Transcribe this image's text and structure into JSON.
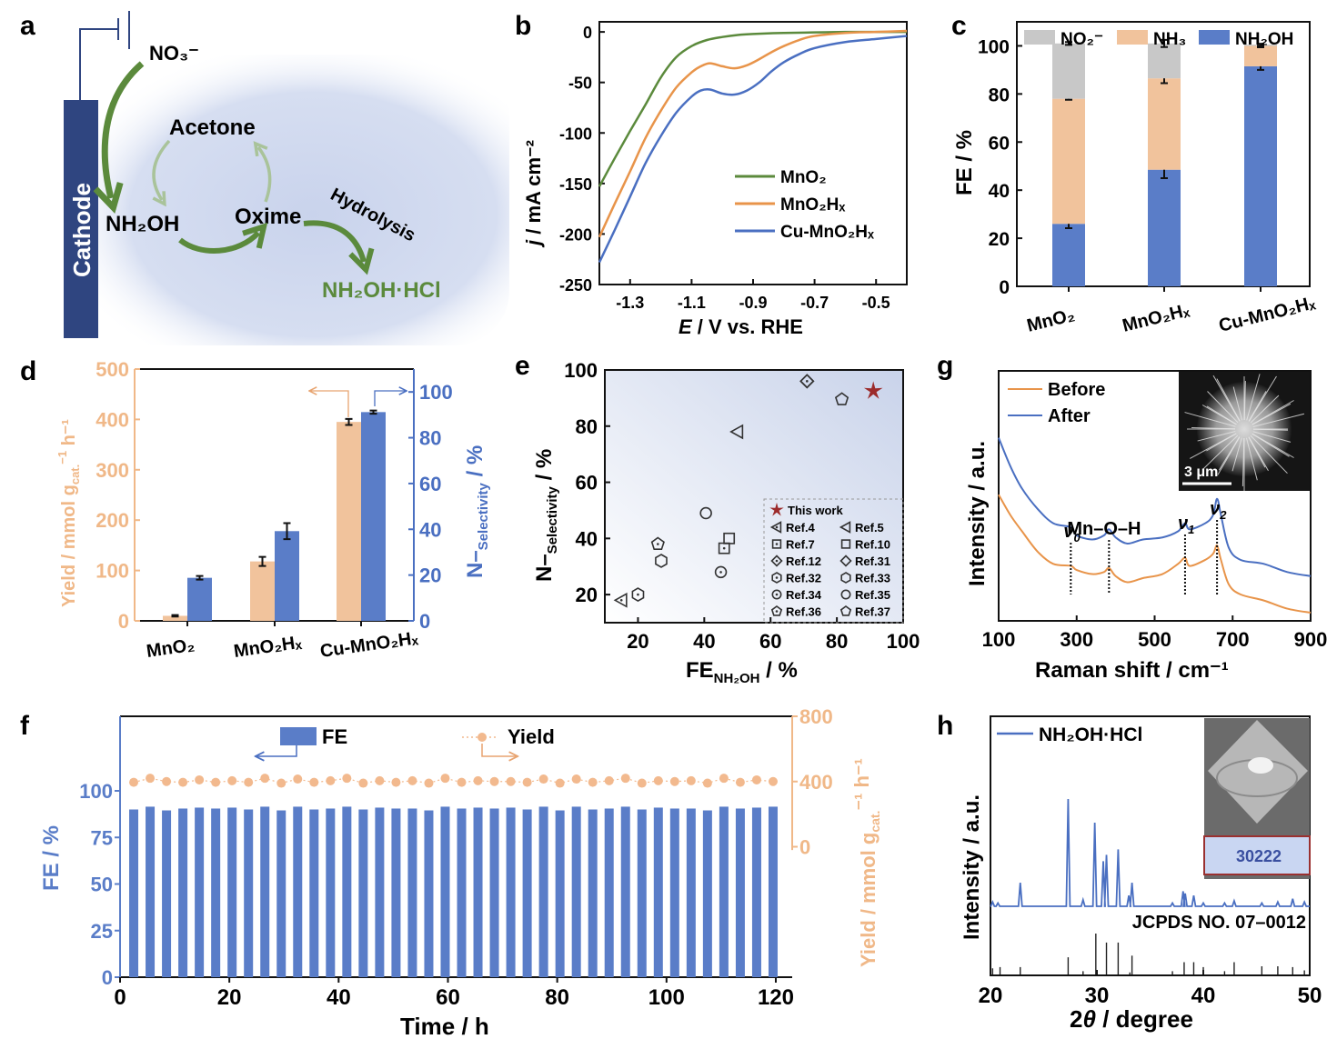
{
  "colors": {
    "green": "#5b8a3c",
    "orange": "#e8944a",
    "blue": "#4a6fc1",
    "bar_blue": "#5a7dc8",
    "bar_peach": "#f1c39c",
    "bar_grey": "#c8c8c8",
    "peach_axis": "#f0b888",
    "star": "#9c2b2b",
    "cathode": "#2f4580"
  },
  "panel_a": {
    "label": "a",
    "nodes": {
      "no3": "NO₃⁻",
      "acetone": "Acetone",
      "nh2oh": "NH₂OH",
      "oxime": "Oxime",
      "hydrolysis": "Hydrolysis",
      "product": "NH₂OH·HCl",
      "cathode": "Cathode"
    }
  },
  "chart_data": [
    {
      "panel": "b",
      "type": "line",
      "xlabel": "E / V vs. RHE",
      "ylabel": "j / mA cm⁻²",
      "xlim": [
        -1.4,
        -0.4
      ],
      "ylim": [
        -250,
        10
      ],
      "xticks": [
        -1.3,
        -1.1,
        -0.9,
        -0.7,
        -0.5
      ],
      "yticks": [
        0,
        -50,
        -100,
        -150,
        -200,
        -250
      ],
      "legend_position": "center-right",
      "series": [
        {
          "name": "MnO₂",
          "color": "#5b8a3c",
          "x": [
            -1.4,
            -1.35,
            -1.3,
            -1.25,
            -1.2,
            -1.15,
            -1.1,
            -1.05,
            -1.0,
            -0.95,
            -0.9,
            -0.8,
            -0.7,
            -0.6,
            -0.5,
            -0.4
          ],
          "y": [
            -153,
            -125,
            -98,
            -72,
            -45,
            -25,
            -14,
            -8,
            -5,
            -3,
            -2,
            -1,
            -0.5,
            0,
            0,
            0
          ]
        },
        {
          "name": "MnO₂Hₓ",
          "color": "#e8944a",
          "x": [
            -1.4,
            -1.35,
            -1.3,
            -1.25,
            -1.2,
            -1.15,
            -1.1,
            -1.07,
            -1.04,
            -1.0,
            -0.96,
            -0.92,
            -0.88,
            -0.84,
            -0.8,
            -0.75,
            -0.7,
            -0.6,
            -0.5,
            -0.4
          ],
          "y": [
            -203,
            -170,
            -138,
            -105,
            -78,
            -55,
            -40,
            -34,
            -31,
            -34,
            -36,
            -33,
            -27,
            -20,
            -14,
            -8,
            -4,
            -1,
            0,
            1
          ]
        },
        {
          "name": "Cu-MnO₂Hₓ",
          "color": "#4a6fc1",
          "x": [
            -1.4,
            -1.35,
            -1.3,
            -1.25,
            -1.2,
            -1.15,
            -1.1,
            -1.07,
            -1.04,
            -1.0,
            -0.96,
            -0.92,
            -0.88,
            -0.84,
            -0.8,
            -0.75,
            -0.7,
            -0.6,
            -0.5,
            -0.4
          ],
          "y": [
            -228,
            -196,
            -163,
            -130,
            -103,
            -80,
            -64,
            -58,
            -57,
            -61,
            -62,
            -58,
            -50,
            -39,
            -30,
            -22,
            -16,
            -10,
            -7,
            -4
          ]
        }
      ]
    },
    {
      "panel": "c",
      "type": "bar",
      "stacked": true,
      "ylabel": "FE / %",
      "ylim": [
        0,
        110
      ],
      "yticks": [
        0,
        20,
        40,
        60,
        80,
        100
      ],
      "categories": [
        "MnO₂",
        "MnO₂Hₓ",
        "Cu-MnO₂Hₓ"
      ],
      "legend_position": "top",
      "series": [
        {
          "name": "NH₂OH",
          "color": "#5a7dc8",
          "values": [
            26,
            48.5,
            91.5
          ],
          "errors": [
            1.8,
            3.5,
            1.5
          ]
        },
        {
          "name": "NH₃",
          "color": "#f1c39c",
          "values": [
            52,
            38,
            8.5
          ],
          "errors": [
            0.4,
            2,
            0.6
          ]
        },
        {
          "name": "NO₂⁻",
          "color": "#c8c8c8",
          "values": [
            23,
            14.5,
            0.5
          ],
          "errors": [
            0.6,
            1.5,
            0.4
          ]
        }
      ]
    },
    {
      "panel": "d",
      "type": "bar",
      "categories": [
        "MnO₂",
        "MnO₂Hₓ",
        "Cu-MnO₂Hₓ"
      ],
      "ylabel_left": "Yield / mmol g_cat.⁻¹ h⁻¹",
      "ylabel_right": "N–Selectivity / %",
      "ylim_left": [
        0,
        500
      ],
      "ylim_right": [
        0,
        110
      ],
      "yticks_left": [
        0,
        100,
        200,
        300,
        400,
        500
      ],
      "yticks_right": [
        0,
        20,
        40,
        60,
        80,
        100
      ],
      "series": [
        {
          "name": "Yield",
          "axis": "left",
          "color": "#f1c39c",
          "values": [
            10,
            118,
            395
          ],
          "errors": [
            1.5,
            9,
            6
          ]
        },
        {
          "name": "N-Selectivity",
          "axis": "right",
          "color": "#5a7dc8",
          "values": [
            18.8,
            39.2,
            91.2
          ],
          "errors": [
            0.8,
            3.5,
            0.7
          ]
        }
      ]
    },
    {
      "panel": "e",
      "type": "scatter",
      "xlabel": "FE_NH₂OH / %",
      "ylabel": "N–Selectivity / %",
      "xlim": [
        10,
        100
      ],
      "ylim": [
        10,
        100
      ],
      "xticks": [
        20,
        40,
        60,
        80,
        100
      ],
      "yticks": [
        20,
        40,
        60,
        80,
        100
      ],
      "legend_position": "bottom-right",
      "points": [
        {
          "label": "This work",
          "marker": "star",
          "x": 91,
          "y": 92.5
        },
        {
          "label": "Ref.4",
          "marker": "triangle-left-dot",
          "x": 15,
          "y": 18
        },
        {
          "label": "Ref.5",
          "marker": "triangle-left",
          "x": 50,
          "y": 78
        },
        {
          "label": "Ref.7",
          "marker": "square-dot",
          "x": 46,
          "y": 36.5
        },
        {
          "label": "Ref.10",
          "marker": "square",
          "x": 47.5,
          "y": 40
        },
        {
          "label": "Ref.12",
          "marker": "diamond-dot",
          "x": 71,
          "y": 96
        },
        {
          "label": "Ref.31",
          "marker": "diamond",
          "x": 71,
          "y": 96
        },
        {
          "label": "Ref.32",
          "marker": "hexagon-dot",
          "x": 20,
          "y": 20
        },
        {
          "label": "Ref.33",
          "marker": "hexagon",
          "x": 27,
          "y": 32
        },
        {
          "label": "Ref.34",
          "marker": "circle-dot",
          "x": 45,
          "y": 28
        },
        {
          "label": "Ref.35",
          "marker": "circle",
          "x": 40.5,
          "y": 49
        },
        {
          "label": "Ref.36",
          "marker": "pentagon-dot",
          "x": 26,
          "y": 38
        },
        {
          "label": "Ref.37",
          "marker": "pentagon",
          "x": 81.5,
          "y": 89.5
        }
      ]
    },
    {
      "panel": "f",
      "type": "bar",
      "xlabel": "Time / h",
      "ylabel_left": "FE / %",
      "ylabel_right": "Yield / mmol g_cat.⁻¹ h⁻¹",
      "xlim": [
        0,
        123
      ],
      "ylim_left": [
        0,
        140
      ],
      "ylim_right": [
        -800,
        800
      ],
      "xticks": [
        0,
        20,
        40,
        60,
        80,
        100,
        120
      ],
      "yticks_left": [
        0,
        25,
        50,
        75,
        100
      ],
      "yticks_right": [
        0,
        400,
        800
      ],
      "x": [
        3,
        6,
        9,
        12,
        15,
        18,
        21,
        24,
        27,
        30,
        33,
        36,
        39,
        42,
        45,
        48,
        51,
        54,
        57,
        60,
        63,
        66,
        69,
        72,
        75,
        78,
        81,
        84,
        87,
        90,
        93,
        96,
        99,
        102,
        105,
        108,
        111,
        114,
        117,
        120
      ],
      "series": [
        {
          "name": "FE",
          "axis": "left",
          "type": "bar",
          "color": "#5a7dc8",
          "values": [
            90,
            91.5,
            89.5,
            90.5,
            91,
            90.5,
            91,
            90,
            91.5,
            89.5,
            91.5,
            90,
            90.5,
            91.5,
            90,
            91,
            90.5,
            90.5,
            89.5,
            91.5,
            90.5,
            91,
            90.5,
            91,
            90,
            91.5,
            89.5,
            91.5,
            90,
            90.5,
            91.5,
            90,
            91,
            90.5,
            90.5,
            89.5,
            91.5,
            90.5,
            91,
            91.5
          ]
        },
        {
          "name": "Yield",
          "axis": "right",
          "type": "line-dotted-markers",
          "color": "#f2b98e",
          "values": [
            395,
            420,
            400,
            395,
            410,
            395,
            405,
            395,
            420,
            390,
            415,
            395,
            405,
            420,
            390,
            405,
            395,
            405,
            390,
            420,
            395,
            405,
            400,
            400,
            395,
            415,
            390,
            415,
            395,
            405,
            420,
            390,
            405,
            400,
            405,
            390,
            420,
            395,
            410,
            400
          ]
        }
      ]
    },
    {
      "panel": "g",
      "type": "line",
      "xlabel": "Raman shift / cm⁻¹",
      "ylabel": "Intensity / a.u.",
      "xlim": [
        100,
        900
      ],
      "xticks": [
        100,
        300,
        500,
        700,
        900
      ],
      "legend_position": "top-left",
      "annotations": [
        {
          "text": "ν0",
          "x": 285
        },
        {
          "text": "Mn–O–H",
          "x": 383
        },
        {
          "text": "ν1",
          "x": 578
        },
        {
          "text": "ν2",
          "x": 660
        }
      ],
      "inset_text": "3 μm",
      "series": [
        {
          "name": "Before",
          "color": "#e8944a",
          "x": [
            100,
            130,
            160,
            200,
            240,
            285,
            300,
            340,
            370,
            383,
            400,
            430,
            470,
            520,
            560,
            578,
            590,
            630,
            650,
            660,
            670,
            690,
            720,
            780,
            840,
            900
          ],
          "y": [
            0.62,
            0.52,
            0.44,
            0.34,
            0.28,
            0.27,
            0.25,
            0.23,
            0.24,
            0.26,
            0.22,
            0.19,
            0.21,
            0.23,
            0.28,
            0.31,
            0.27,
            0.3,
            0.33,
            0.37,
            0.3,
            0.18,
            0.13,
            0.1,
            0.06,
            0.04
          ]
        },
        {
          "name": "After",
          "color": "#4a6fc1",
          "x": [
            100,
            130,
            160,
            200,
            240,
            285,
            300,
            340,
            370,
            383,
            400,
            430,
            470,
            520,
            560,
            578,
            590,
            630,
            650,
            660,
            670,
            690,
            720,
            780,
            840,
            900
          ],
          "y": [
            0.9,
            0.76,
            0.65,
            0.55,
            0.48,
            0.46,
            0.42,
            0.4,
            0.42,
            0.45,
            0.41,
            0.38,
            0.4,
            0.41,
            0.44,
            0.48,
            0.45,
            0.48,
            0.52,
            0.6,
            0.52,
            0.36,
            0.3,
            0.28,
            0.24,
            0.22
          ]
        }
      ]
    },
    {
      "panel": "h",
      "type": "line",
      "xlabel": "2θ / degree",
      "ylabel": "Intensity / a.u.",
      "xlim": [
        20,
        50
      ],
      "xticks": [
        20,
        30,
        40,
        50
      ],
      "legend_position": "top-left",
      "reference_label": "JCPDS NO. 07–0012",
      "inset_display": "30222",
      "series": [
        {
          "name": "NH₂OH·HCl",
          "color": "#4a6fc1",
          "type": "peaks",
          "peaks": [
            [
              20.2,
              0.04
            ],
            [
              20.7,
              0.03
            ],
            [
              22.8,
              0.22
            ],
            [
              27.3,
              1.0
            ],
            [
              28.7,
              0.06
            ],
            [
              29.8,
              0.78
            ],
            [
              30.6,
              0.42
            ],
            [
              30.9,
              0.48
            ],
            [
              32.0,
              0.53
            ],
            [
              33.0,
              0.1
            ],
            [
              33.3,
              0.22
            ],
            [
              37.1,
              0.03
            ],
            [
              38.1,
              0.14
            ],
            [
              38.3,
              0.12
            ],
            [
              39.1,
              0.1
            ],
            [
              40.0,
              0.03
            ],
            [
              42.0,
              0.03
            ],
            [
              42.9,
              0.05
            ],
            [
              45.5,
              0.03
            ],
            [
              47.0,
              0.04
            ],
            [
              48.4,
              0.07
            ],
            [
              49.5,
              0.04
            ]
          ]
        },
        {
          "name": "JCPDS 07-0012",
          "color": "#222222",
          "type": "sticks",
          "peaks": [
            [
              20.2,
              0.15
            ],
            [
              20.9,
              0.18
            ],
            [
              22.8,
              0.18
            ],
            [
              27.3,
              0.42
            ],
            [
              28.7,
              0.08
            ],
            [
              29.9,
              1.0
            ],
            [
              30.9,
              0.78
            ],
            [
              32.0,
              0.78
            ],
            [
              33.1,
              0.05
            ],
            [
              33.3,
              0.46
            ],
            [
              37.1,
              0.08
            ],
            [
              38.2,
              0.3
            ],
            [
              39.1,
              0.3
            ],
            [
              40.0,
              0.18
            ],
            [
              42.0,
              0.08
            ],
            [
              42.9,
              0.3
            ],
            [
              45.5,
              0.2
            ],
            [
              47.0,
              0.2
            ],
            [
              48.4,
              0.18
            ],
            [
              49.5,
              0.1
            ]
          ]
        }
      ]
    }
  ],
  "panel_labels": [
    "a",
    "b",
    "c",
    "d",
    "e",
    "f",
    "g",
    "h"
  ],
  "text": {
    "b_xlabel_E": "E",
    "b_xlabel_rest": " / V vs. RHE",
    "b_ylabel_j": "j",
    "b_ylabel_rest": " / mA cm⁻²",
    "c_ylabel": "FE / %",
    "d_ylabel_left": "Yield / mmol g",
    "d_ylabel_left_sub": "cat.",
    "d_ylabel_left_sup": "−1",
    "d_ylabel_left_end": " h⁻¹",
    "d_ylabel_right": "N–",
    "d_ylabel_right_sub": "Selectivity",
    "d_ylabel_right_end": " / %",
    "e_xlabel": "FE",
    "e_xlabel_sub": "NH₂OH",
    "e_xlabel_end": " / %",
    "f_legend_fe": "FE",
    "f_legend_yield": "Yield",
    "f_ylabel_left": "FE / %",
    "f_ylabel_right": "Yield / mmol g",
    "f_ylabel_right_sub": "cat.",
    "f_ylabel_right_end": "⁻¹ h⁻¹",
    "g_legend_before": "Before",
    "g_legend_after": "After",
    "g_ylabel": "Intensity / a.u.",
    "g_xlabel": "Raman shift / cm⁻¹",
    "h_ylabel": "Intensity / a.u.",
    "h_xlabel_2": "2",
    "h_xlabel_theta": "θ",
    "h_xlabel_rest": " / degree"
  }
}
